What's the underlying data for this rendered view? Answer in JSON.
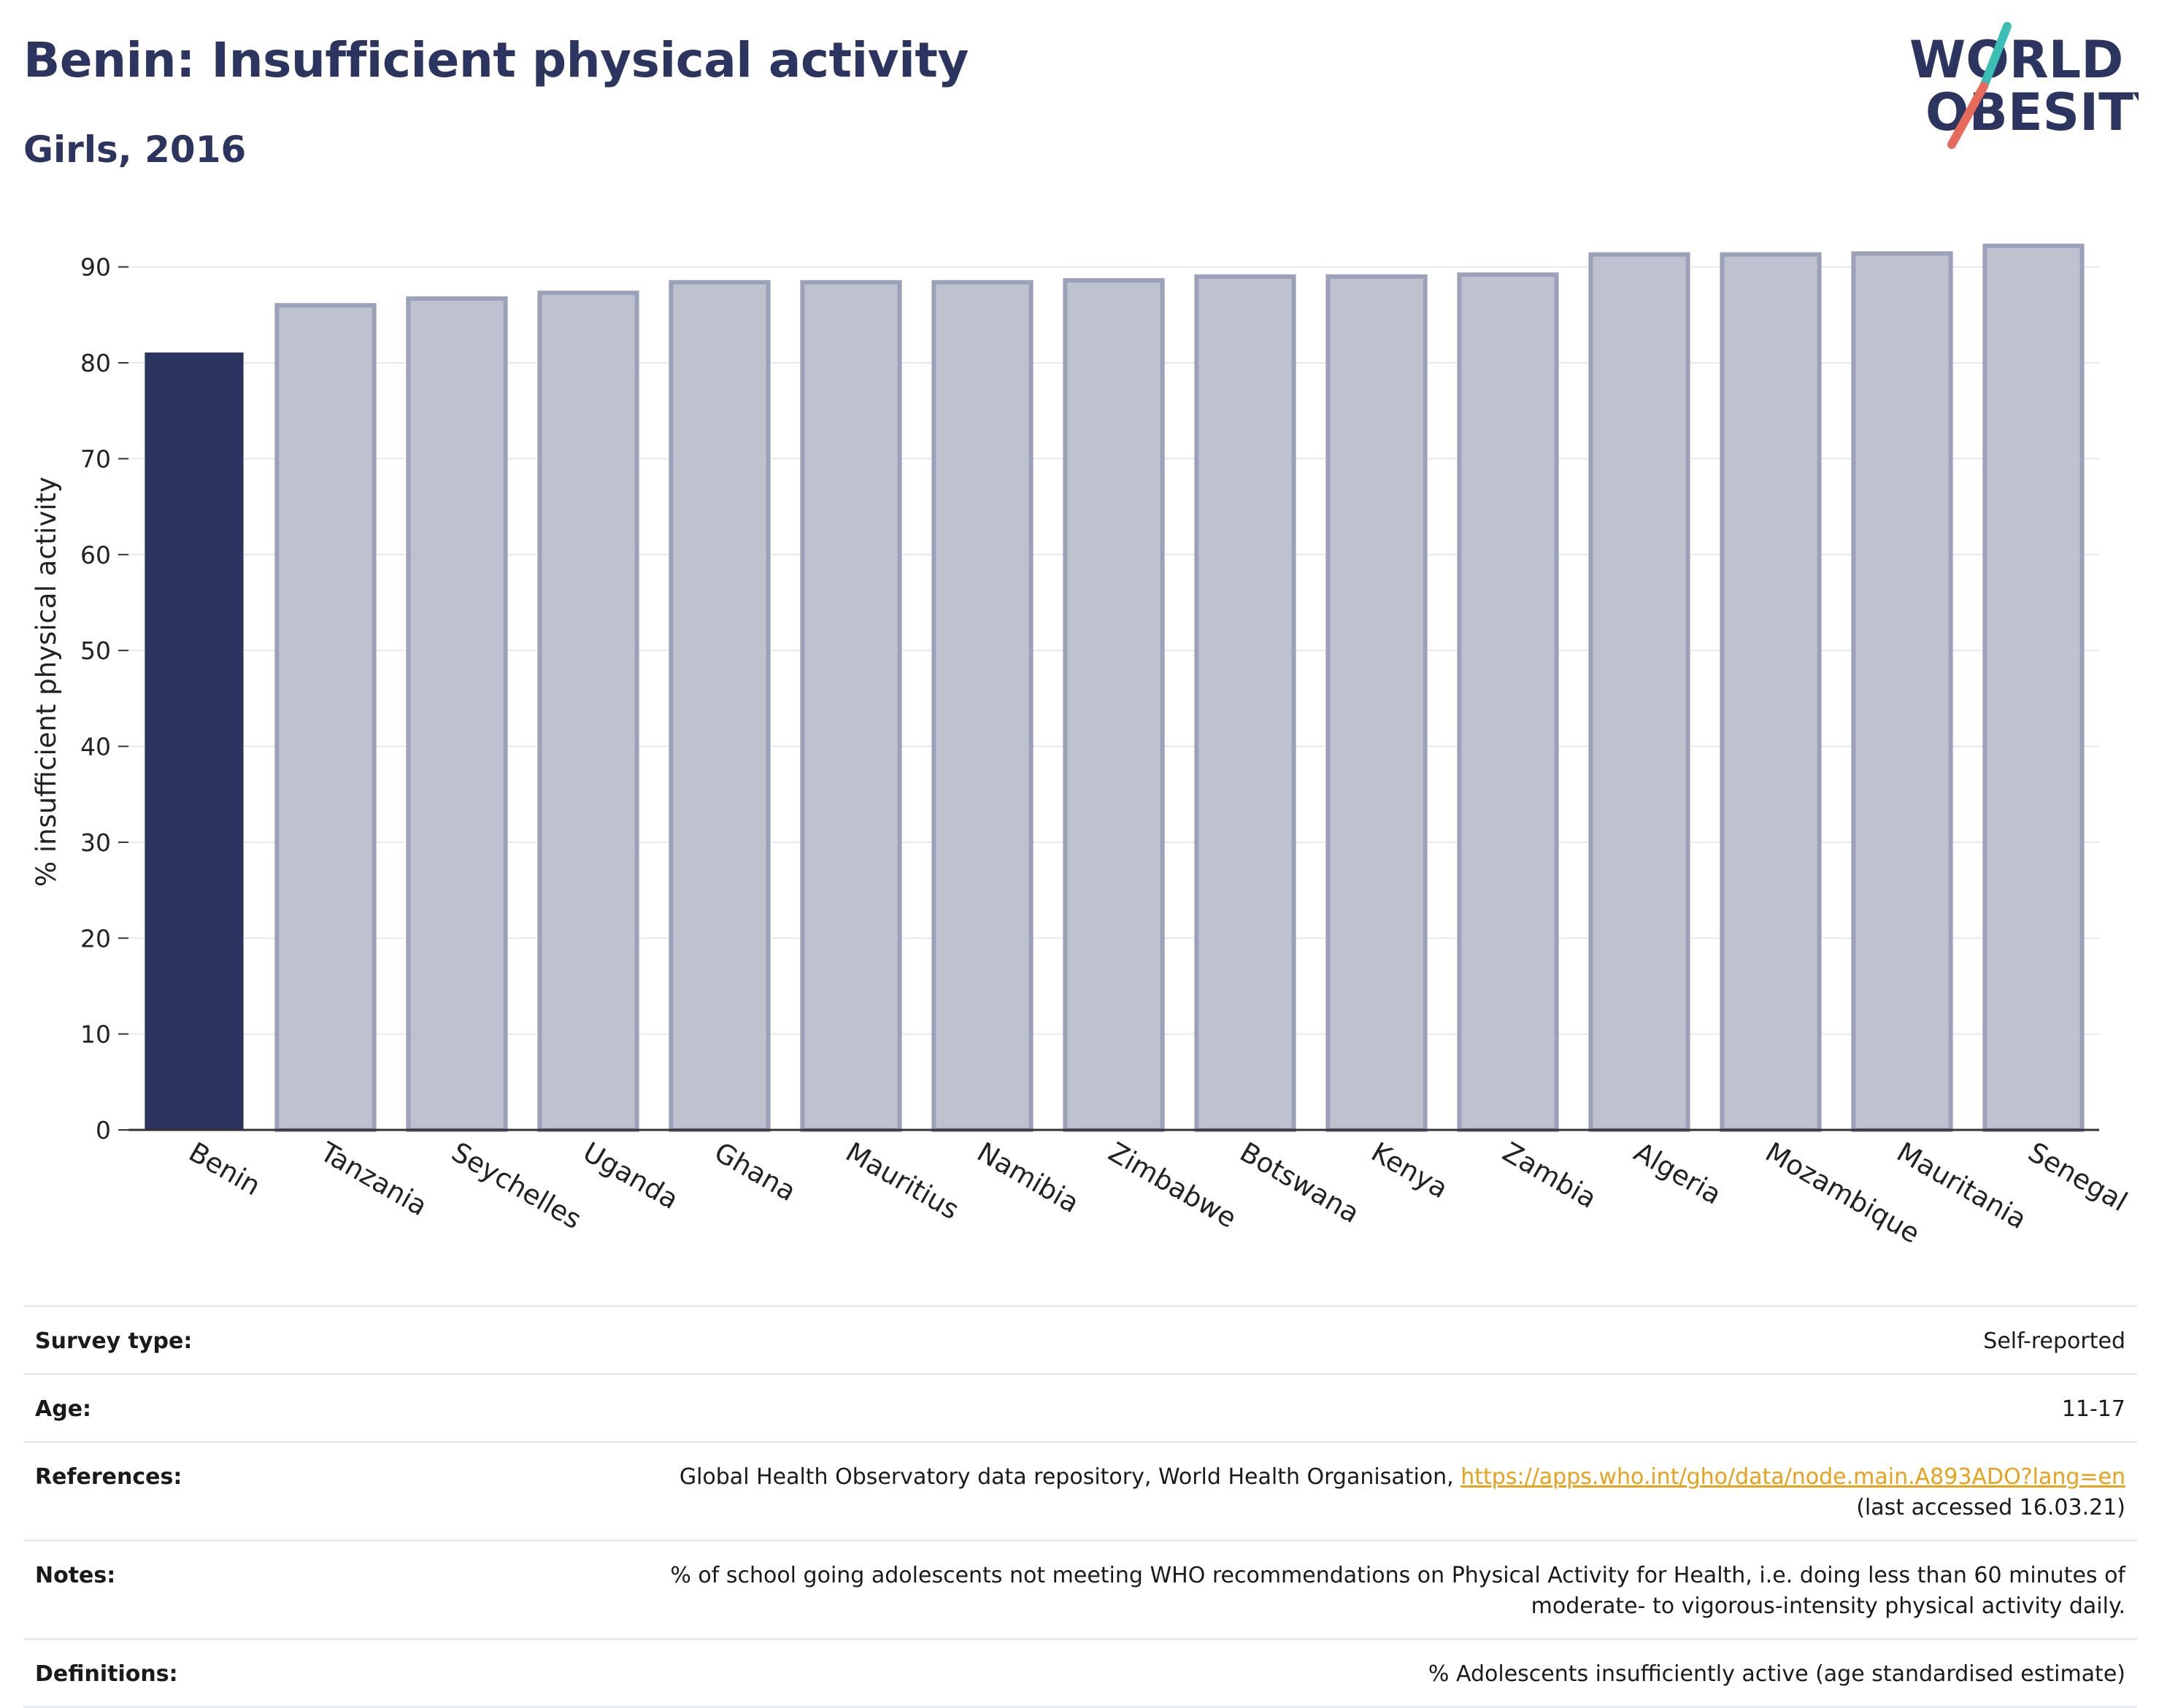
{
  "header": {
    "title": "Benin: Insufficient physical activity",
    "subtitle": "Girls, 2016"
  },
  "logo": {
    "line1": "WORLD",
    "line2": "OBESITY",
    "icon": "world-obesity-logo"
  },
  "colors": {
    "highlight_bar": "#2b3560",
    "other_bar": "#bec1ce",
    "other_bar_border": "#9ba1b8",
    "title": "#2b3560",
    "link": "#e8a11a"
  },
  "chart_data": {
    "type": "bar",
    "title": "Benin: Insufficient physical activity",
    "subtitle": "Girls, 2016",
    "ylabel": "% insufficient physical activity",
    "xlabel": "",
    "ylim": [
      0,
      95
    ],
    "yticks": [
      0,
      10,
      20,
      30,
      40,
      50,
      60,
      70,
      80,
      90
    ],
    "grid": true,
    "highlight": "Benin",
    "categories": [
      "Benin",
      "Tanzania",
      "Seychelles",
      "Uganda",
      "Ghana",
      "Mauritius",
      "Namibia",
      "Zimbabwe",
      "Botswana",
      "Kenya",
      "Zambia",
      "Algeria",
      "Mozambique",
      "Mauritania",
      "Senegal"
    ],
    "values": [
      81.0,
      86.0,
      86.7,
      87.3,
      88.4,
      88.4,
      88.4,
      88.6,
      89.0,
      89.0,
      89.2,
      91.3,
      91.3,
      91.4,
      92.2
    ]
  },
  "info": [
    {
      "label": "Survey type:",
      "value": "Self-reported"
    },
    {
      "label": "Age:",
      "value": "11-17"
    },
    {
      "label": "References:",
      "value": "Global Health Observatory data repository, World Health Organisation,",
      "link": "https://apps.who.int/gho/data/node.main.A893ADO?lang=en",
      "value2": "(last accessed 16.03.21)"
    },
    {
      "label": "Notes:",
      "value": "% of school going adolescents not meeting WHO recommendations on Physical Activity for Health, i.e. doing less than 60 minutes of",
      "value2": "moderate- to vigorous-intensity physical activity daily."
    },
    {
      "label": "Definitions:",
      "value": "% Adolescents insufficiently active (age standardised estimate)"
    }
  ]
}
